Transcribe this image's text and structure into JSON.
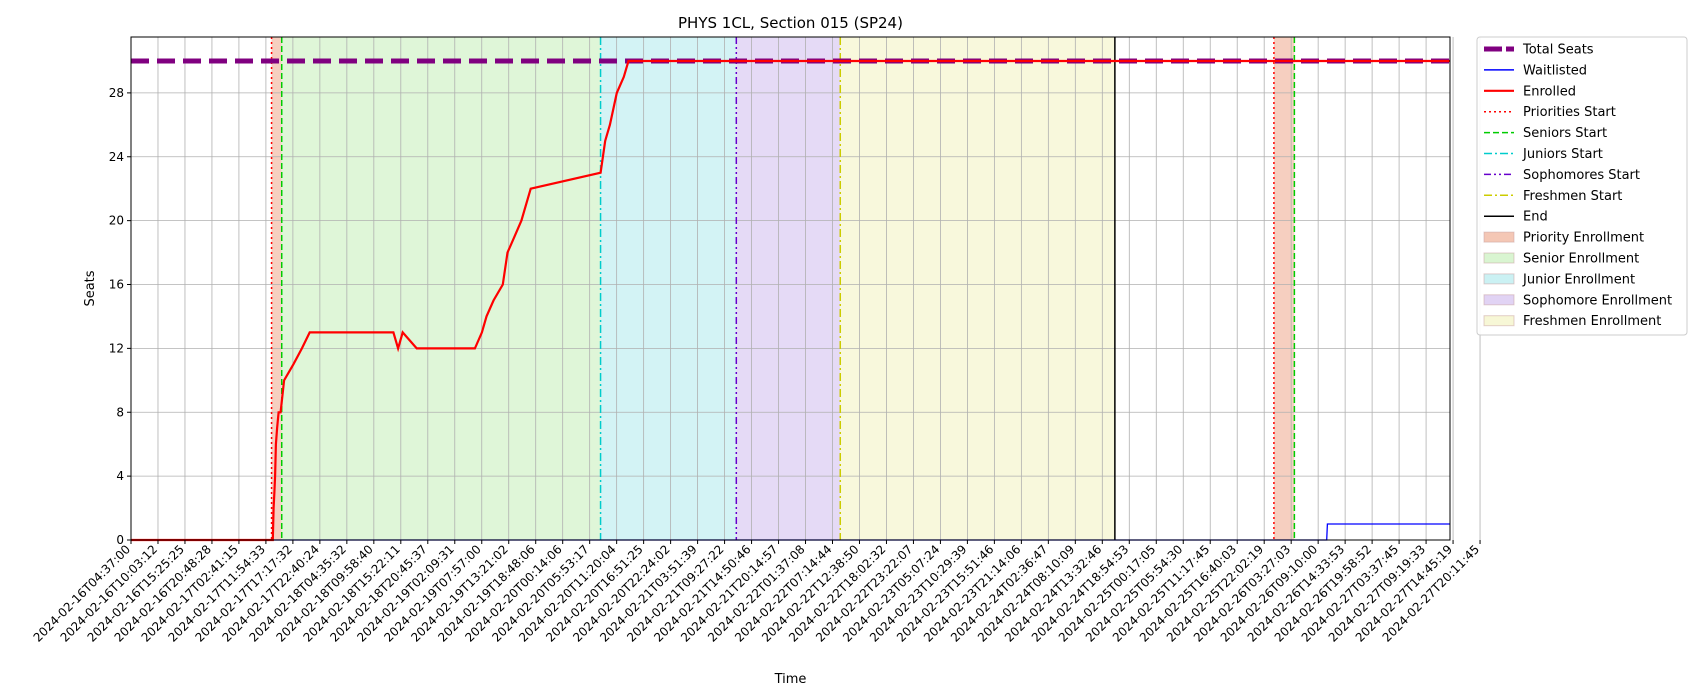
{
  "chart_data": {
    "type": "line",
    "title": "PHYS 1CL, Section 015 (SP24)",
    "xlabel": "Time",
    "ylabel": "Seats",
    "xlim": [
      "2024-02-16T04:37:00",
      "2024-02-28T00:00:00"
    ],
    "ylim": [
      0,
      30
    ],
    "y_ticks": [
      0,
      4,
      8,
      12,
      16,
      20,
      24,
      28
    ],
    "x_tick_labels": [
      "2024-02-16T04:37:00",
      "2024-02-16T10:03:12",
      "2024-02-16T15:25:25",
      "2024-02-16T20:48:28",
      "2024-02-17T02:41:15",
      "2024-02-17T11:54:33",
      "2024-02-17T17:17:32",
      "2024-02-17T22:40:24",
      "2024-02-18T04:35:32",
      "2024-02-18T09:58:40",
      "2024-02-18T15:22:11",
      "2024-02-18T20:45:37",
      "2024-02-19T02:09:31",
      "2024-02-19T07:57:00",
      "2024-02-19T13:21:02",
      "2024-02-19T18:48:06",
      "2024-02-20T00:14:06",
      "2024-02-20T05:53:17",
      "2024-02-20T11:20:04",
      "2024-02-20T16:51:25",
      "2024-02-20T22:24:02",
      "2024-02-21T03:51:39",
      "2024-02-21T09:27:22",
      "2024-02-21T14:50:46",
      "2024-02-21T20:14:57",
      "2024-02-22T01:37:08",
      "2024-02-22T07:14:44",
      "2024-02-22T12:38:50",
      "2024-02-22T18:02:32",
      "2024-02-22T23:22:07",
      "2024-02-23T05:07:24",
      "2024-02-23T10:29:39",
      "2024-02-23T15:51:46",
      "2024-02-23T21:14:06",
      "2024-02-24T02:36:47",
      "2024-02-24T08:10:09",
      "2024-02-24T13:32:46",
      "2024-02-24T18:54:53",
      "2024-02-25T00:17:05",
      "2024-02-25T05:54:30",
      "2024-02-25T11:17:45",
      "2024-02-25T16:40:03",
      "2024-02-25T22:02:19",
      "2024-02-26T03:27:03",
      "2024-02-26T09:10:00",
      "2024-02-26T14:33:53",
      "2024-02-26T19:58:52",
      "2024-02-27T03:37:45",
      "2024-02-27T09:19:33",
      "2024-02-27T14:45:19",
      "2024-02-27T20:11:45"
    ],
    "grid": true,
    "legend_position": "outside right, top",
    "series": [
      {
        "name": "Total Seats",
        "color": "#800080",
        "style": "thick-dashed",
        "x": [
          "2024-02-16T04:37:00",
          "2024-02-28T00:00:00"
        ],
        "y": [
          30,
          30
        ]
      },
      {
        "name": "Waitlisted",
        "color": "#0000ff",
        "style": "solid",
        "x": [
          "2024-02-16T04:37:00",
          "2024-02-26T21:30:00",
          "2024-02-26T21:40:00",
          "2024-02-28T00:00:00"
        ],
        "y": [
          0,
          0,
          1,
          1
        ]
      },
      {
        "name": "Enrolled",
        "color": "#ff0000",
        "style": "solid",
        "x": [
          "2024-02-16T04:37:00",
          "2024-02-17T11:05:00",
          "2024-02-17T11:15:00",
          "2024-02-17T11:25:00",
          "2024-02-17T11:35:00",
          "2024-02-17T11:45:00",
          "2024-02-17T12:00:00",
          "2024-02-17T12:20:00",
          "2024-02-17T12:45:00",
          "2024-02-17T13:30:00",
          "2024-02-17T15:30:00",
          "2024-02-17T17:20:00",
          "2024-02-17T19:00:00",
          "2024-02-17T20:30:00",
          "2024-02-17T21:30:00",
          "2024-02-18T13:00:00",
          "2024-02-18T14:00:00",
          "2024-02-18T15:00:00",
          "2024-02-18T18:00:00",
          "2024-02-19T06:30:00",
          "2024-02-19T08:00:00",
          "2024-02-19T09:00:00",
          "2024-02-19T10:30:00",
          "2024-02-19T12:30:00",
          "2024-02-19T13:30:00",
          "2024-02-19T15:00:00",
          "2024-02-19T16:30:00",
          "2024-02-19T18:30:00",
          "2024-02-20T09:30:00",
          "2024-02-20T10:00:00",
          "2024-02-20T10:30:00",
          "2024-02-20T11:30:00",
          "2024-02-20T13:00:00",
          "2024-02-20T14:30:00",
          "2024-02-20T15:30:00",
          "2024-02-20T16:30:00",
          "2024-02-28T00:00:00"
        ],
        "y": [
          0,
          0,
          2,
          3,
          4,
          6,
          7,
          8,
          8,
          10,
          11,
          12,
          13,
          13,
          13,
          13,
          12,
          13,
          12,
          12,
          13,
          14,
          15,
          16,
          18,
          19,
          20,
          22,
          23,
          24,
          25,
          26,
          28,
          29,
          30,
          30,
          30
        ]
      },
      {
        "name": "Priorities Start",
        "color": "#ff0000",
        "style": "dotted-vertical",
        "x": [
          "2024-02-17T10:49:00"
        ]
      },
      {
        "name": "Seniors Start",
        "color": "#00cc00",
        "style": "dashed-vertical",
        "x": [
          "2024-02-17T13:00:00"
        ]
      },
      {
        "name": "Juniors Start",
        "color": "#00cccc",
        "style": "dashdot-vertical",
        "x": [
          "2024-02-20T09:30:00"
        ]
      },
      {
        "name": "Sophomores Start",
        "color": "#6600cc",
        "style": "dashdotdot-vertical",
        "x": [
          "2024-02-21T14:40:00"
        ]
      },
      {
        "name": "Freshmen Start",
        "color": "#cccc00",
        "style": "dashdot-vertical",
        "x": [
          "2024-02-22T13:00:00"
        ]
      },
      {
        "name": "End",
        "color": "#000000",
        "style": "solid-vertical",
        "x": [
          "2024-02-25T00:00:00"
        ]
      }
    ],
    "bands": [
      {
        "name": "Priority Enrollment",
        "color": "#f4c7b5",
        "from": "2024-02-17T10:49:00",
        "to": "2024-02-17T13:00:00"
      },
      {
        "name": "Senior Enrollment",
        "color": "#d9f5d1",
        "from": "2024-02-17T13:00:00",
        "to": "2024-02-20T09:30:00"
      },
      {
        "name": "Junior Enrollment",
        "color": "#cbf1f3",
        "from": "2024-02-20T09:30:00",
        "to": "2024-02-21T14:40:00"
      },
      {
        "name": "Sophomore Enrollment",
        "color": "#e1d3f4",
        "from": "2024-02-21T14:40:00",
        "to": "2024-02-22T13:00:00"
      },
      {
        "name": "Freshmen Enrollment",
        "color": "#f7f7d6",
        "from": "2024-02-22T13:00:00",
        "to": "2024-02-25T00:00:00"
      }
    ],
    "extra_markers": [
      {
        "legend": "Priority Enrollment",
        "type": "band",
        "color": "#f4c7b5",
        "from": "2024-02-26T10:10:00",
        "to": "2024-02-26T14:33:53"
      },
      {
        "legend": "Priorities Start",
        "type": "vline",
        "color": "#ff0000",
        "style": "dotted",
        "x": "2024-02-26T10:10:00"
      },
      {
        "legend": "Seniors Start",
        "type": "vline",
        "color": "#00cc00",
        "style": "dashed",
        "x": "2024-02-26T14:33:53"
      }
    ]
  }
}
